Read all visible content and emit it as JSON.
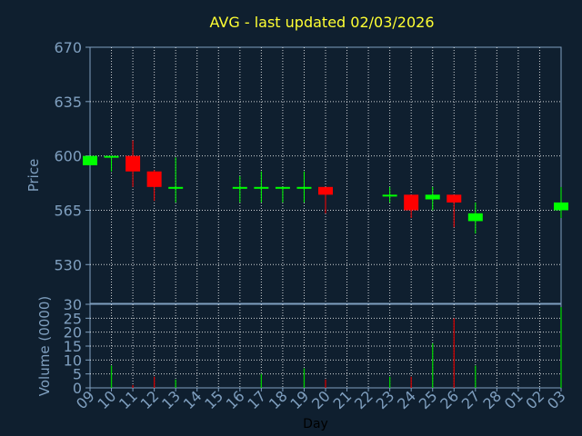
{
  "chart_data": [
    {
      "type": "candlestick",
      "title": "AVG - last updated 02/03/2026",
      "ylabel": "Price",
      "ylim": [
        505,
        670
      ],
      "yticks": [
        530,
        565,
        600,
        635,
        670
      ],
      "grid": true,
      "categories": [
        "09",
        "10",
        "11",
        "12",
        "13",
        "14",
        "15",
        "16",
        "17",
        "18",
        "19",
        "20",
        "21",
        "22",
        "23",
        "24",
        "25",
        "26",
        "27",
        "28",
        "01",
        "02",
        "03"
      ],
      "candles": [
        {
          "x": 0,
          "open": 594,
          "high": 600,
          "low": 594,
          "close": 600
        },
        {
          "x": 1,
          "open": 599,
          "high": 600,
          "low": 590,
          "close": 600
        },
        {
          "x": 2,
          "open": 600,
          "high": 610,
          "low": 580,
          "close": 590
        },
        {
          "x": 3,
          "open": 590,
          "high": 591,
          "low": 571,
          "close": 580
        },
        {
          "x": 4,
          "open": 579,
          "high": 599,
          "low": 570,
          "close": 580
        },
        {
          "x": 7,
          "open": 579,
          "high": 587,
          "low": 570,
          "close": 580
        },
        {
          "x": 8,
          "open": 579,
          "high": 590,
          "low": 570,
          "close": 580
        },
        {
          "x": 9,
          "open": 579,
          "high": 580,
          "low": 570,
          "close": 580
        },
        {
          "x": 10,
          "open": 579,
          "high": 590,
          "low": 570,
          "close": 580
        },
        {
          "x": 11,
          "open": 580,
          "high": 580,
          "low": 563,
          "close": 575
        },
        {
          "x": 14,
          "open": 574,
          "high": 580,
          "low": 570,
          "close": 575
        },
        {
          "x": 15,
          "open": 575,
          "high": 575,
          "low": 560,
          "close": 565
        },
        {
          "x": 16,
          "open": 572,
          "high": 580,
          "low": 565,
          "close": 575
        },
        {
          "x": 17,
          "open": 575,
          "high": 575,
          "low": 554,
          "close": 570
        },
        {
          "x": 18,
          "open": 558,
          "high": 570,
          "low": 550,
          "close": 563
        },
        {
          "x": 22,
          "open": 565,
          "high": 580,
          "low": 560,
          "close": 570
        }
      ]
    },
    {
      "type": "bar",
      "ylabel": "Volume (0000)",
      "xlabel": "Day",
      "ylim": [
        0,
        30
      ],
      "yticks": [
        0,
        5,
        10,
        15,
        20,
        25,
        30
      ],
      "categories": [
        "09",
        "10",
        "11",
        "12",
        "13",
        "14",
        "15",
        "16",
        "17",
        "18",
        "19",
        "20",
        "21",
        "22",
        "23",
        "24",
        "25",
        "26",
        "27",
        "28",
        "01",
        "02",
        "03"
      ],
      "bars": [
        {
          "x": 1,
          "value": 8,
          "color": "#00cc00"
        },
        {
          "x": 2,
          "value": 1,
          "color": "#cc0000"
        },
        {
          "x": 3,
          "value": 4,
          "color": "#cc0000"
        },
        {
          "x": 4,
          "value": 3,
          "color": "#00cc00"
        },
        {
          "x": 8,
          "value": 5,
          "color": "#00cc00"
        },
        {
          "x": 10,
          "value": 7,
          "color": "#00cc00"
        },
        {
          "x": 11,
          "value": 3,
          "color": "#cc0000"
        },
        {
          "x": 14,
          "value": 4,
          "color": "#00cc00"
        },
        {
          "x": 15,
          "value": 4,
          "color": "#cc0000"
        },
        {
          "x": 16,
          "value": 16,
          "color": "#00cc00"
        },
        {
          "x": 17,
          "value": 25,
          "color": "#cc0000"
        },
        {
          "x": 18,
          "value": 8,
          "color": "#00cc00"
        },
        {
          "x": 22,
          "value": 29,
          "color": "#00cc00"
        }
      ]
    }
  ],
  "colors": {
    "background": "#0f1f2f",
    "panel": "#0f1f2f",
    "axis": "#7f9fbf",
    "grid": "#ffffff",
    "up": "#00ff00",
    "down": "#ff0000",
    "title": "#ffff33"
  }
}
